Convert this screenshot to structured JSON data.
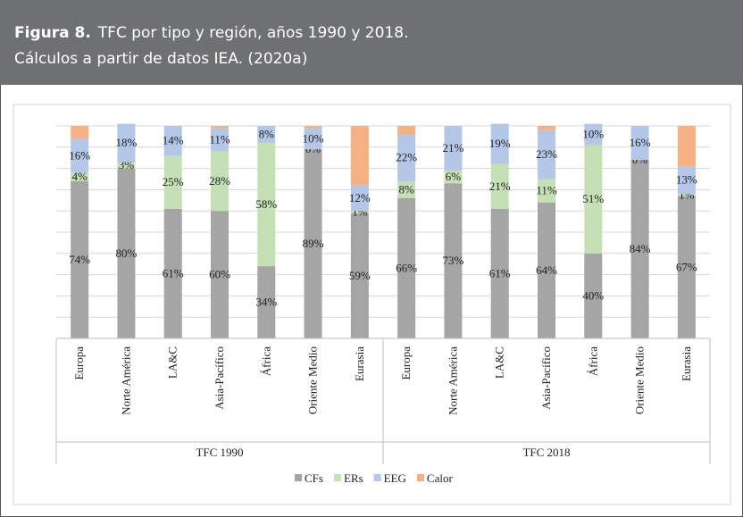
{
  "figure": {
    "label": "Figura 8.",
    "title": "TFC por tipo y región, años 1990 y 2018.",
    "source": "Cálculos a partir de datos IEA. (2020a)"
  },
  "chart_data": {
    "type": "stacked_bar",
    "categories": [
      "Europa",
      "Norte América",
      "LA&C",
      "Asia-Pacífico",
      "África",
      "Oriente Medio",
      "Eurasia",
      "Europa",
      "Norte América",
      "LA&C",
      "Asia-Pacífico",
      "África",
      "Oriente Medio",
      "Eurasia"
    ],
    "groups": [
      "TFC 1990",
      "TFC 2018"
    ],
    "series": [
      {
        "name": "CFs",
        "color": "#a5a5a5",
        "values": [
          74,
          80,
          61,
          60,
          34,
          89,
          59,
          66,
          73,
          61,
          64,
          40,
          84,
          67
        ],
        "value_labels": [
          "74%",
          "80%",
          "61%",
          "60%",
          "34%",
          "89%",
          "59%",
          "66%",
          "73%",
          "61%",
          "64%",
          "40%",
          "84%",
          "67%"
        ]
      },
      {
        "name": "ERs",
        "color": "#c5e0b4",
        "values": [
          4,
          3,
          25,
          28,
          58,
          0,
          1,
          8,
          6,
          21,
          11,
          51,
          0,
          1
        ],
        "value_labels": [
          "4%",
          "3%",
          "25%",
          "28%",
          "58%",
          "0%",
          "1%",
          "8%",
          "6%",
          "21%",
          "11%",
          "51%",
          "0%",
          "1%"
        ]
      },
      {
        "name": "EEG",
        "color": "#b4c7e7",
        "values": [
          16,
          18,
          14,
          11,
          8,
          10,
          12,
          22,
          21,
          19,
          23,
          10,
          16,
          13
        ],
        "value_labels": [
          "16%",
          "18%",
          "14%",
          "11%",
          "8%",
          "10%",
          "12%",
          "22%",
          "21%",
          "19%",
          "23%",
          "10%",
          "16%",
          "13%"
        ]
      },
      {
        "name": "Calor",
        "color": "#f4b183",
        "values": [
          6,
          0,
          0,
          1,
          0,
          1,
          28,
          4,
          0,
          0,
          2,
          0,
          0,
          19
        ]
      }
    ],
    "ylim": [
      0,
      100
    ],
    "yticks": [
      0,
      10,
      20,
      30,
      40,
      50,
      60,
      70,
      80,
      90,
      100
    ],
    "grid": true,
    "legend": "bottom"
  }
}
